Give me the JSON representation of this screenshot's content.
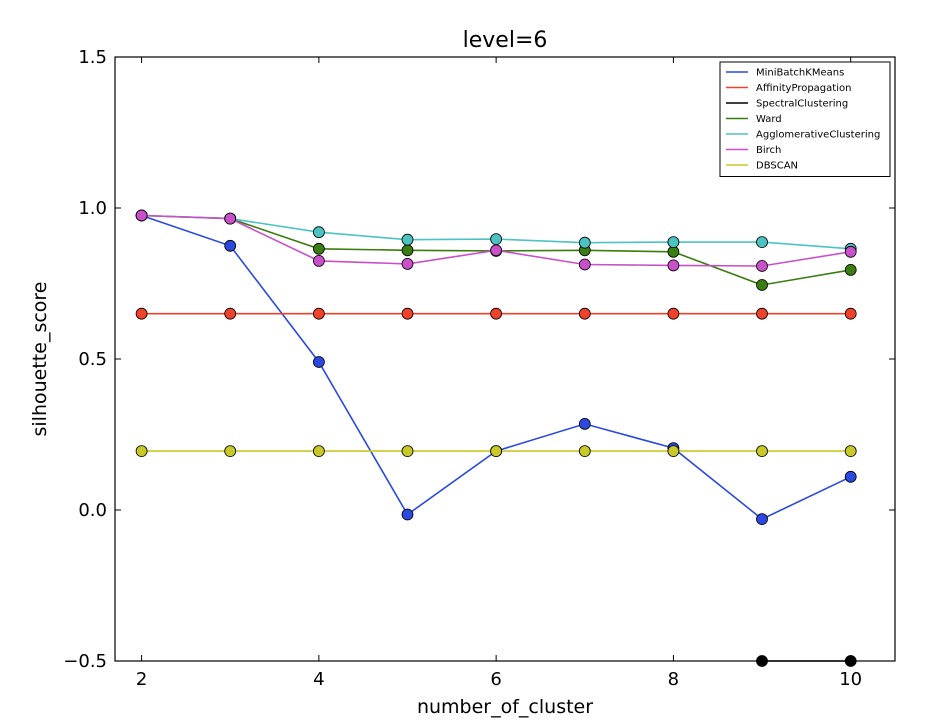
{
  "chart_data": {
    "type": "line",
    "title": "level=6",
    "xlabel": "number_of_cluster",
    "ylabel": "silhouette_score",
    "xlim": [
      1.7,
      10.5
    ],
    "ylim": [
      -0.5,
      1.5
    ],
    "xticks": [
      "2",
      "4",
      "6",
      "8",
      "10"
    ],
    "yticks": [
      "−0.5",
      "0.0",
      "0.5",
      "1.0",
      "1.5"
    ],
    "grid": false,
    "legend_position": "top-right",
    "x": [
      2,
      3,
      4,
      5,
      6,
      7,
      8,
      9,
      10
    ],
    "series": [
      {
        "name": "MiniBatchKMeans",
        "color": "#2b49e0",
        "values": [
          0.975,
          0.875,
          0.49,
          -0.015,
          0.195,
          0.285,
          0.205,
          -0.03,
          0.11
        ]
      },
      {
        "name": "AffinityPropagation",
        "color": "#f0412a",
        "values": [
          0.65,
          0.65,
          0.65,
          0.65,
          0.65,
          0.65,
          0.65,
          0.65,
          0.65
        ]
      },
      {
        "name": "SpectralClustering",
        "color": "#000000",
        "values": [
          null,
          null,
          null,
          null,
          null,
          null,
          null,
          -0.5,
          -0.5
        ]
      },
      {
        "name": "Ward",
        "color": "#3a7d10",
        "values": [
          0.975,
          0.965,
          0.865,
          0.86,
          0.858,
          0.86,
          0.855,
          0.745,
          0.795
        ]
      },
      {
        "name": "AgglomerativeClustering",
        "color": "#4cc3c3",
        "values": [
          0.975,
          0.965,
          0.92,
          0.895,
          0.897,
          0.885,
          0.887,
          0.887,
          0.865
        ]
      },
      {
        "name": "Birch",
        "color": "#c850c8",
        "values": [
          0.975,
          0.965,
          0.825,
          0.815,
          0.86,
          0.813,
          0.81,
          0.808,
          0.855
        ]
      },
      {
        "name": "DBSCAN",
        "color": "#c8c828",
        "values": [
          0.195,
          0.195,
          0.195,
          0.195,
          0.195,
          0.195,
          0.195,
          0.195,
          0.195
        ]
      }
    ]
  }
}
